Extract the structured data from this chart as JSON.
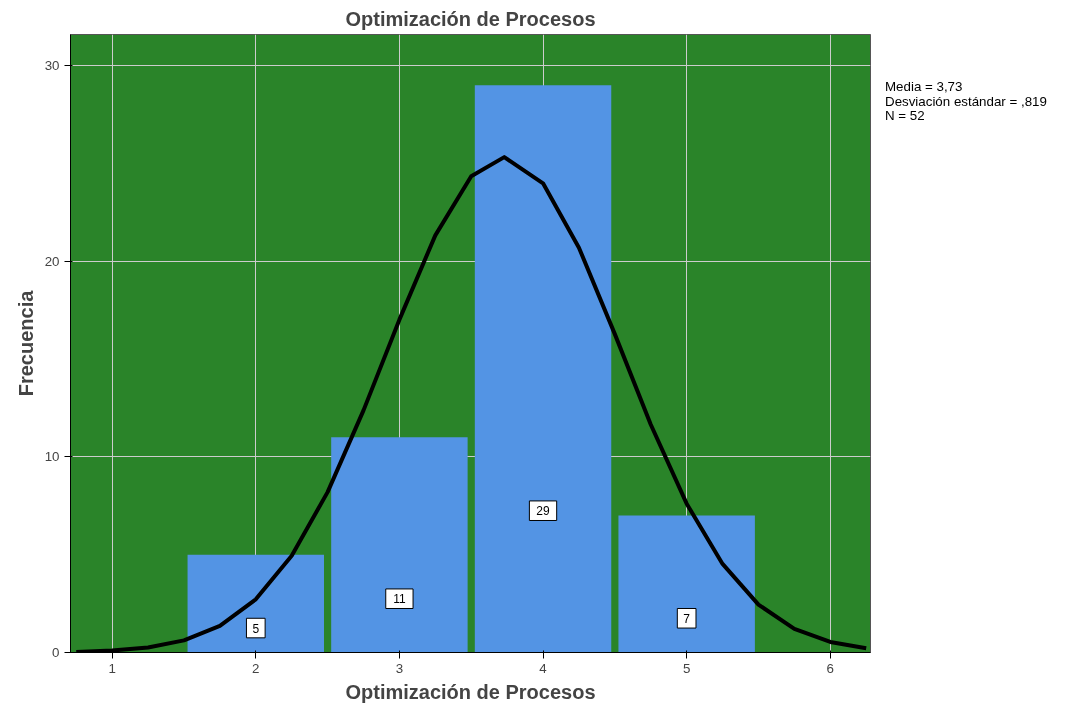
{
  "chart_data": {
    "type": "histogram",
    "title": "Optimización de Procesos",
    "xlabel": "Optimización de Procesos",
    "ylabel": "Frecuencia",
    "bins": [
      1.5,
      2.5,
      3.5,
      4.5,
      5.5
    ],
    "series": [
      {
        "values": [
          5,
          11,
          29,
          7
        ],
        "value_labels": [
          "5",
          "11",
          "29",
          "7"
        ],
        "color": "#5394e4"
      },
      {
        "type": "line",
        "color": "#000000",
        "x": [
          0.75,
          1.0,
          1.25,
          1.5,
          1.75,
          2.0,
          2.25,
          2.5,
          2.75,
          3.0,
          3.25,
          3.5,
          3.73,
          4.0,
          4.25,
          4.5,
          4.75,
          5.0,
          5.25,
          5.5,
          5.75,
          6.0,
          6.25
        ],
        "values": [
          0.03,
          0.1,
          0.26,
          0.62,
          1.36,
          2.72,
          4.95,
          8.2,
          12.38,
          17.02,
          21.33,
          24.35,
          25.33,
          23.99,
          20.7,
          16.28,
          11.66,
          7.61,
          4.53,
          2.45,
          1.21,
          0.54,
          0.22
        ]
      }
    ],
    "xlim": [
      0.71,
      6.28
    ],
    "xticks": [
      1,
      2,
      3,
      4,
      5,
      6
    ],
    "ylim": [
      0,
      31.6
    ],
    "yticks": [
      0,
      10,
      20,
      30
    ],
    "grid": true,
    "line_style": "solid",
    "annotations": [
      "Media = 3,73",
      "Desviación estándar = ,819",
      "N = 52"
    ]
  }
}
